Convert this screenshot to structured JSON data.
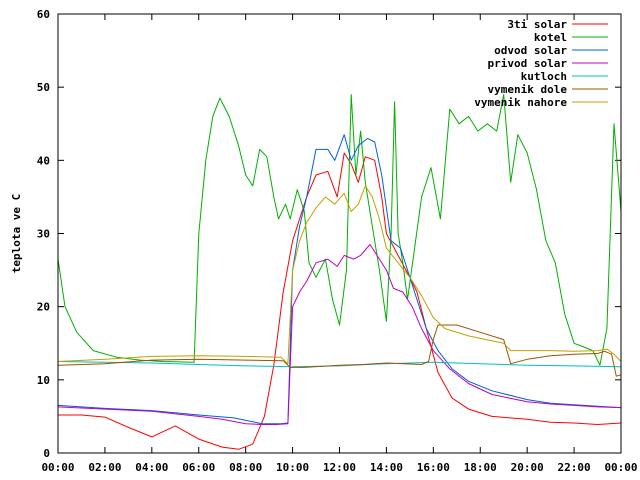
{
  "chart_data": {
    "type": "line",
    "title": "",
    "xlabel": "",
    "ylabel": "teplota ve C",
    "xlim": [
      0,
      24
    ],
    "ylim": [
      0,
      60
    ],
    "x_ticks": [
      {
        "value": 0,
        "label": "00:00"
      },
      {
        "value": 2,
        "label": "02:00"
      },
      {
        "value": 4,
        "label": "04:00"
      },
      {
        "value": 6,
        "label": "06:00"
      },
      {
        "value": 8,
        "label": "08:00"
      },
      {
        "value": 10,
        "label": "10:00"
      },
      {
        "value": 12,
        "label": "12:00"
      },
      {
        "value": 14,
        "label": "14:00"
      },
      {
        "value": 16,
        "label": "16:00"
      },
      {
        "value": 18,
        "label": "18:00"
      },
      {
        "value": 20,
        "label": "20:00"
      },
      {
        "value": 22,
        "label": "22:00"
      },
      {
        "value": 24,
        "label": "00:00"
      }
    ],
    "y_ticks": [
      {
        "value": 0,
        "label": "0"
      },
      {
        "value": 10,
        "label": "10"
      },
      {
        "value": 20,
        "label": "20"
      },
      {
        "value": 30,
        "label": "30"
      },
      {
        "value": 40,
        "label": "40"
      },
      {
        "value": 50,
        "label": "50"
      },
      {
        "value": 60,
        "label": "60"
      }
    ],
    "grid": false,
    "legend_position": "top-right",
    "series": [
      {
        "name": "3ti solar",
        "color": "#ff0000",
        "points": [
          [
            0,
            5.2
          ],
          [
            1,
            5.2
          ],
          [
            2,
            4.9
          ],
          [
            3,
            3.5
          ],
          [
            4,
            2.2
          ],
          [
            5,
            3.7
          ],
          [
            6,
            1.9
          ],
          [
            7,
            0.8
          ],
          [
            7.7,
            0.5
          ],
          [
            8.3,
            1.2
          ],
          [
            8.8,
            5
          ],
          [
            9.2,
            12
          ],
          [
            9.6,
            22
          ],
          [
            10,
            29
          ],
          [
            10.3,
            32
          ],
          [
            10.6,
            35
          ],
          [
            11,
            38
          ],
          [
            11.5,
            38.5
          ],
          [
            11.9,
            35
          ],
          [
            12.2,
            41
          ],
          [
            12.5,
            39.5
          ],
          [
            12.8,
            37
          ],
          [
            13.1,
            40.5
          ],
          [
            13.5,
            40
          ],
          [
            13.8,
            35
          ],
          [
            14,
            30
          ],
          [
            14.5,
            27
          ],
          [
            15,
            24
          ],
          [
            15.3,
            22
          ],
          [
            15.7,
            17
          ],
          [
            16.2,
            11
          ],
          [
            16.8,
            7.5
          ],
          [
            17.5,
            6
          ],
          [
            18.5,
            5
          ],
          [
            20,
            4.6
          ],
          [
            21,
            4.2
          ],
          [
            22,
            4.1
          ],
          [
            23,
            3.9
          ],
          [
            24,
            4.1
          ]
        ]
      },
      {
        "name": "kotel",
        "color": "#00b000",
        "points": [
          [
            0,
            26.5
          ],
          [
            0.3,
            20
          ],
          [
            0.8,
            16.5
          ],
          [
            1.5,
            14
          ],
          [
            2.5,
            13.1
          ],
          [
            3.5,
            12.7
          ],
          [
            4.5,
            12.5
          ],
          [
            5.8,
            12.4
          ],
          [
            6,
            30
          ],
          [
            6.3,
            40
          ],
          [
            6.6,
            46
          ],
          [
            6.9,
            48.5
          ],
          [
            7.3,
            46
          ],
          [
            7.7,
            42
          ],
          [
            8,
            38
          ],
          [
            8.3,
            36.5
          ],
          [
            8.6,
            41.5
          ],
          [
            8.9,
            40.5
          ],
          [
            9.2,
            35
          ],
          [
            9.4,
            32
          ],
          [
            9.7,
            34
          ],
          [
            9.9,
            32
          ],
          [
            10.2,
            36
          ],
          [
            10.5,
            33
          ],
          [
            10.7,
            26
          ],
          [
            11,
            24
          ],
          [
            11.4,
            26.5
          ],
          [
            11.7,
            21
          ],
          [
            12,
            17.5
          ],
          [
            12.3,
            25
          ],
          [
            12.5,
            49
          ],
          [
            12.7,
            38
          ],
          [
            12.9,
            44
          ],
          [
            13.1,
            37
          ],
          [
            13.4,
            31
          ],
          [
            13.7,
            25
          ],
          [
            14,
            18
          ],
          [
            14.2,
            30
          ],
          [
            14.35,
            48
          ],
          [
            14.5,
            30
          ],
          [
            14.7,
            26
          ],
          [
            14.9,
            21
          ],
          [
            15.2,
            28
          ],
          [
            15.5,
            35
          ],
          [
            15.9,
            39
          ],
          [
            16.3,
            32
          ],
          [
            16.7,
            47
          ],
          [
            17.1,
            45
          ],
          [
            17.5,
            46
          ],
          [
            17.9,
            44
          ],
          [
            18.3,
            45
          ],
          [
            18.7,
            44
          ],
          [
            19,
            49
          ],
          [
            19.3,
            37
          ],
          [
            19.6,
            43.5
          ],
          [
            20,
            41
          ],
          [
            20.4,
            36
          ],
          [
            20.8,
            29
          ],
          [
            21.2,
            26
          ],
          [
            21.6,
            19
          ],
          [
            22,
            15
          ],
          [
            22.4,
            14.5
          ],
          [
            22.8,
            14
          ],
          [
            23.1,
            12
          ],
          [
            23.4,
            17
          ],
          [
            23.7,
            45
          ],
          [
            24,
            33
          ]
        ]
      },
      {
        "name": "odvod solar",
        "color": "#0060e0",
        "points": [
          [
            0,
            6.5
          ],
          [
            2,
            6.1
          ],
          [
            4,
            5.8
          ],
          [
            6,
            5.2
          ],
          [
            7.5,
            4.8
          ],
          [
            8.7,
            4
          ],
          [
            9.5,
            4
          ],
          [
            9.8,
            4.1
          ],
          [
            10,
            25
          ],
          [
            10.3,
            31
          ],
          [
            10.6,
            35
          ],
          [
            11,
            41.5
          ],
          [
            11.5,
            41.5
          ],
          [
            11.8,
            40
          ],
          [
            12.2,
            43.5
          ],
          [
            12.5,
            40
          ],
          [
            12.8,
            42
          ],
          [
            13.2,
            43
          ],
          [
            13.5,
            42.5
          ],
          [
            13.8,
            38
          ],
          [
            14.2,
            29
          ],
          [
            14.6,
            28
          ],
          [
            15,
            24
          ],
          [
            15.3,
            21
          ],
          [
            15.7,
            17
          ],
          [
            16.2,
            14
          ],
          [
            16.8,
            11.5
          ],
          [
            17.5,
            9.8
          ],
          [
            18.5,
            8.5
          ],
          [
            20,
            7.3
          ],
          [
            21,
            6.8
          ],
          [
            22,
            6.6
          ],
          [
            23,
            6.4
          ],
          [
            24,
            6.2
          ]
        ]
      },
      {
        "name": "privod solar",
        "color": "#c000c0",
        "points": [
          [
            0,
            6.3
          ],
          [
            2,
            6
          ],
          [
            4,
            5.7
          ],
          [
            6,
            5
          ],
          [
            7,
            4.6
          ],
          [
            8,
            4
          ],
          [
            8.7,
            3.9
          ],
          [
            9.3,
            3.9
          ],
          [
            9.8,
            4
          ],
          [
            10,
            20
          ],
          [
            10.3,
            22
          ],
          [
            10.6,
            23.5
          ],
          [
            11,
            26
          ],
          [
            11.5,
            26.5
          ],
          [
            11.9,
            25.5
          ],
          [
            12.2,
            27
          ],
          [
            12.6,
            26.5
          ],
          [
            12.9,
            27
          ],
          [
            13.3,
            28.5
          ],
          [
            13.6,
            27
          ],
          [
            14,
            25
          ],
          [
            14.3,
            22.5
          ],
          [
            14.7,
            22
          ],
          [
            15.1,
            20
          ],
          [
            15.5,
            17
          ],
          [
            16,
            14
          ],
          [
            16.7,
            11.5
          ],
          [
            17.5,
            9.5
          ],
          [
            18.5,
            8
          ],
          [
            20,
            7
          ],
          [
            21,
            6.7
          ],
          [
            22,
            6.5
          ],
          [
            23,
            6.3
          ],
          [
            24,
            6.2
          ]
        ]
      },
      {
        "name": "kutloch",
        "color": "#00c0c0",
        "points": [
          [
            0,
            12.5
          ],
          [
            4,
            12.3
          ],
          [
            6,
            12.1
          ],
          [
            8,
            11.9
          ],
          [
            10,
            11.8
          ],
          [
            12,
            11.9
          ],
          [
            14,
            12.2
          ],
          [
            16,
            12.4
          ],
          [
            18,
            12.2
          ],
          [
            20,
            12
          ],
          [
            22,
            11.9
          ],
          [
            24,
            11.8
          ]
        ]
      },
      {
        "name": "vymenik dole",
        "color": "#a05000",
        "points": [
          [
            0,
            12
          ],
          [
            2,
            12.2
          ],
          [
            4,
            12.7
          ],
          [
            6,
            12.8
          ],
          [
            8,
            12.7
          ],
          [
            9.6,
            12.6
          ],
          [
            9.9,
            11.7
          ],
          [
            10.5,
            11.7
          ],
          [
            12,
            12
          ],
          [
            13,
            12.1
          ],
          [
            14,
            12.3
          ],
          [
            15.5,
            12.1
          ],
          [
            15.8,
            12.5
          ],
          [
            16,
            15.5
          ],
          [
            16.2,
            17.5
          ],
          [
            17,
            17.5
          ],
          [
            18,
            16.5
          ],
          [
            19,
            15.5
          ],
          [
            19.3,
            12.2
          ],
          [
            20,
            12.8
          ],
          [
            21,
            13.3
          ],
          [
            22,
            13.5
          ],
          [
            23,
            13.6
          ],
          [
            23.3,
            13.9
          ],
          [
            23.6,
            13.5
          ],
          [
            23.8,
            10.5
          ],
          [
            24,
            10.7
          ]
        ]
      },
      {
        "name": "vymenik nahore",
        "color": "#c0a000",
        "points": [
          [
            0,
            12.5
          ],
          [
            2,
            12.8
          ],
          [
            4,
            13.2
          ],
          [
            6,
            13.3
          ],
          [
            8,
            13.2
          ],
          [
            9.5,
            13.1
          ],
          [
            9.8,
            12.2
          ],
          [
            10,
            25
          ],
          [
            10.3,
            29
          ],
          [
            10.6,
            31.5
          ],
          [
            11,
            33.5
          ],
          [
            11.4,
            35
          ],
          [
            11.8,
            34
          ],
          [
            12.2,
            35.5
          ],
          [
            12.5,
            33
          ],
          [
            12.8,
            34
          ],
          [
            13.1,
            36.5
          ],
          [
            13.4,
            35
          ],
          [
            13.7,
            32
          ],
          [
            14,
            28
          ],
          [
            14.5,
            26
          ],
          [
            15,
            24
          ],
          [
            15.5,
            21.5
          ],
          [
            16,
            18.5
          ],
          [
            16.5,
            17
          ],
          [
            17.5,
            16
          ],
          [
            19,
            15
          ],
          [
            19.3,
            14
          ],
          [
            21,
            14
          ],
          [
            22,
            13.9
          ],
          [
            23,
            14
          ],
          [
            23.4,
            14.2
          ],
          [
            23.7,
            13.5
          ],
          [
            24,
            12.5
          ]
        ]
      }
    ]
  }
}
